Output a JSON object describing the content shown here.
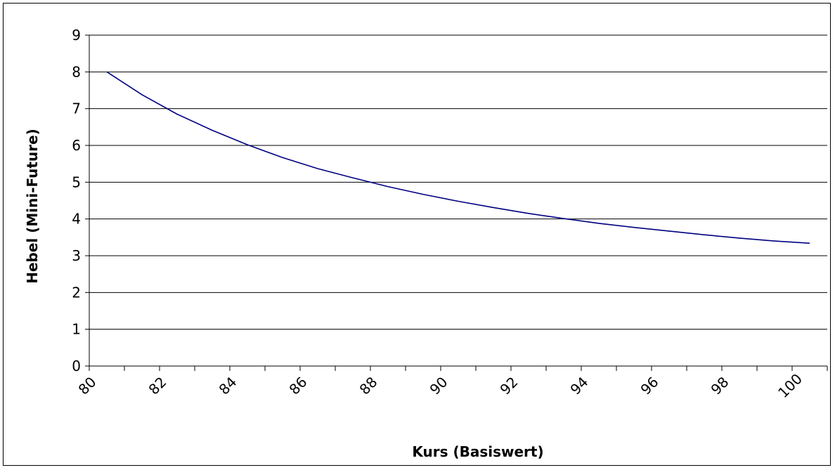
{
  "chart_data": {
    "type": "line",
    "title": "",
    "xlabel": "Kurs (Basiswert)",
    "ylabel": "Hebel (Mini-Future)",
    "xlim": [
      80,
      101
    ],
    "ylim": [
      0,
      9
    ],
    "x_ticks": [
      80,
      82,
      84,
      86,
      88,
      90,
      92,
      94,
      96,
      98,
      100
    ],
    "y_ticks": [
      0,
      1,
      2,
      3,
      4,
      5,
      6,
      7,
      8,
      9
    ],
    "grid": "horizontal",
    "legend": "none",
    "series": [
      {
        "color": "#000080",
        "x": [
          80.5,
          81.5,
          82.5,
          83.5,
          84.5,
          85.5,
          86.5,
          87.5,
          88.5,
          89.5,
          90.5,
          91.5,
          92.5,
          93.5,
          94.5,
          95.5,
          96.5,
          97.5,
          98.5,
          99.5,
          100.5
        ],
        "y": [
          8.0,
          7.38,
          6.85,
          6.41,
          6.02,
          5.67,
          5.37,
          5.12,
          4.88,
          4.67,
          4.48,
          4.31,
          4.15,
          4.01,
          3.88,
          3.77,
          3.67,
          3.57,
          3.48,
          3.4,
          3.34
        ]
      }
    ]
  }
}
